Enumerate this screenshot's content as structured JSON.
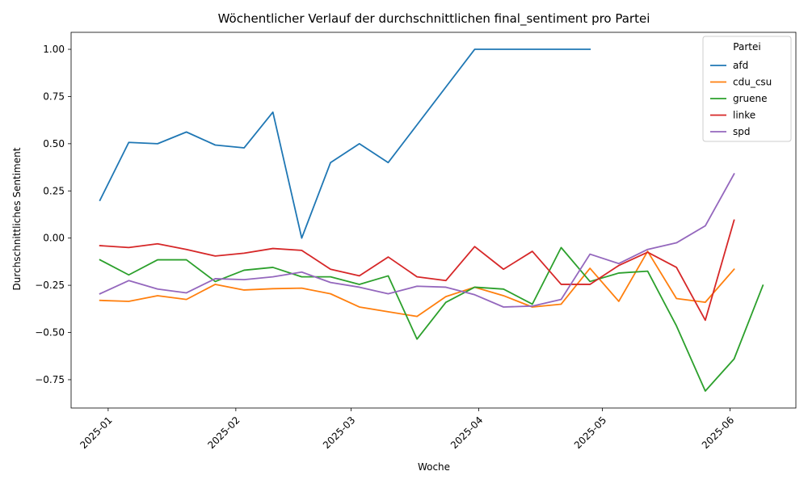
{
  "chart_data": {
    "type": "line",
    "title": "Wöchentlicher Verlauf der durchschnittlichen final_sentiment pro Partei",
    "xlabel": "Woche",
    "ylabel": "Durchschnittliches Sentiment",
    "ylim": [
      -0.9,
      1.09
    ],
    "xlim": [
      "2024-12-23",
      "2025-06-17"
    ],
    "grid": false,
    "legend": {
      "title": "Partei",
      "position": "upper right"
    },
    "x_ticks": [
      {
        "date": "2025-01-01",
        "label": "2025-01"
      },
      {
        "date": "2025-02-01",
        "label": "2025-02"
      },
      {
        "date": "2025-03-01",
        "label": "2025-03"
      },
      {
        "date": "2025-04-01",
        "label": "2025-04"
      },
      {
        "date": "2025-05-01",
        "label": "2025-05"
      },
      {
        "date": "2025-06-01",
        "label": "2025-06"
      }
    ],
    "y_ticks": [
      {
        "value": 1.0,
        "label": "1.00"
      },
      {
        "value": 0.75,
        "label": "0.75"
      },
      {
        "value": 0.5,
        "label": "0.50"
      },
      {
        "value": 0.25,
        "label": "0.25"
      },
      {
        "value": 0.0,
        "label": "0.00"
      },
      {
        "value": -0.25,
        "label": "−0.25"
      },
      {
        "value": -0.5,
        "label": "−0.50"
      },
      {
        "value": -0.75,
        "label": "−0.75"
      }
    ],
    "x": [
      "2024-12-30",
      "2025-01-06",
      "2025-01-13",
      "2025-01-20",
      "2025-01-27",
      "2025-02-03",
      "2025-02-10",
      "2025-02-17",
      "2025-02-24",
      "2025-03-03",
      "2025-03-10",
      "2025-03-17",
      "2025-03-24",
      "2025-03-31",
      "2025-04-07",
      "2025-04-14",
      "2025-04-21",
      "2025-04-28",
      "2025-05-05",
      "2025-05-12",
      "2025-05-19",
      "2025-05-26",
      "2025-06-02",
      "2025-06-09"
    ],
    "series": [
      {
        "name": "afd",
        "color": "#1f77b4",
        "values": [
          0.2,
          0.507,
          0.5,
          0.562,
          0.493,
          0.478,
          0.667,
          0.0,
          0.4,
          0.5,
          0.4,
          0.6,
          0.8,
          1.0,
          1.0,
          1.0,
          1.0,
          1.0,
          null,
          null,
          null,
          null,
          null,
          null
        ]
      },
      {
        "name": "cdu_csu",
        "color": "#ff7f0e",
        "values": [
          -0.33,
          -0.335,
          -0.305,
          -0.325,
          -0.245,
          -0.275,
          -0.268,
          -0.265,
          -0.295,
          -0.365,
          -0.39,
          -0.415,
          -0.31,
          -0.26,
          -0.305,
          -0.365,
          -0.35,
          -0.16,
          -0.335,
          -0.07,
          -0.32,
          -0.34,
          -0.165,
          null
        ]
      },
      {
        "name": "gruene",
        "color": "#2ca02c",
        "values": [
          -0.115,
          -0.195,
          -0.115,
          -0.115,
          -0.23,
          -0.17,
          -0.155,
          -0.205,
          -0.205,
          -0.245,
          -0.2,
          -0.535,
          -0.34,
          -0.26,
          -0.27,
          -0.35,
          -0.05,
          -0.23,
          -0.185,
          -0.175,
          -0.465,
          -0.81,
          -0.64,
          -0.25
        ]
      },
      {
        "name": "linke",
        "color": "#d62728",
        "values": [
          -0.04,
          -0.05,
          -0.03,
          -0.06,
          -0.095,
          -0.08,
          -0.055,
          -0.065,
          -0.165,
          -0.2,
          -0.1,
          -0.205,
          -0.225,
          -0.045,
          -0.165,
          -0.07,
          -0.245,
          -0.245,
          -0.145,
          -0.075,
          -0.155,
          -0.435,
          0.095,
          null
        ]
      },
      {
        "name": "spd",
        "color": "#9467bd",
        "values": [
          -0.295,
          -0.225,
          -0.27,
          -0.29,
          -0.215,
          -0.22,
          -0.205,
          -0.18,
          -0.235,
          -0.26,
          -0.295,
          -0.255,
          -0.26,
          -0.3,
          -0.365,
          -0.36,
          -0.325,
          -0.085,
          -0.135,
          -0.06,
          -0.025,
          0.065,
          0.34,
          null
        ]
      }
    ]
  }
}
